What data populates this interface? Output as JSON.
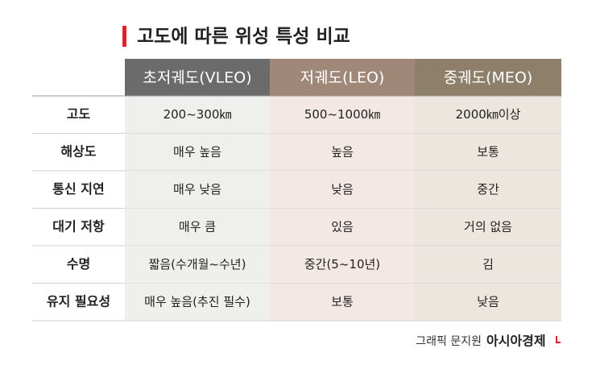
{
  "title": "고도에 따른 위성 특성 비교",
  "table": {
    "columns": [
      "초저궤도(VLEO)",
      "저궤도(LEO)",
      "중궤도(MEO)"
    ],
    "rows": [
      [
        "고도",
        "200~300㎞",
        "500~1000㎞",
        "2000㎞이상"
      ],
      [
        "해상도",
        "매우 높음",
        "높음",
        "보통"
      ],
      [
        "통신 지연",
        "매우 낮음",
        "낮음",
        "중간"
      ],
      [
        "대기 저항",
        "매우 큼",
        "있음",
        "거의 없음"
      ],
      [
        "수명",
        "짧음(수개월~수년)",
        "중간(5~10년)",
        "김"
      ],
      [
        "유지 필요성",
        "매우 높음(추진 필수)",
        "보통",
        "낮음"
      ]
    ]
  },
  "footer": {
    "credit": "그래픽 문지원",
    "brand": "아시아경제"
  }
}
